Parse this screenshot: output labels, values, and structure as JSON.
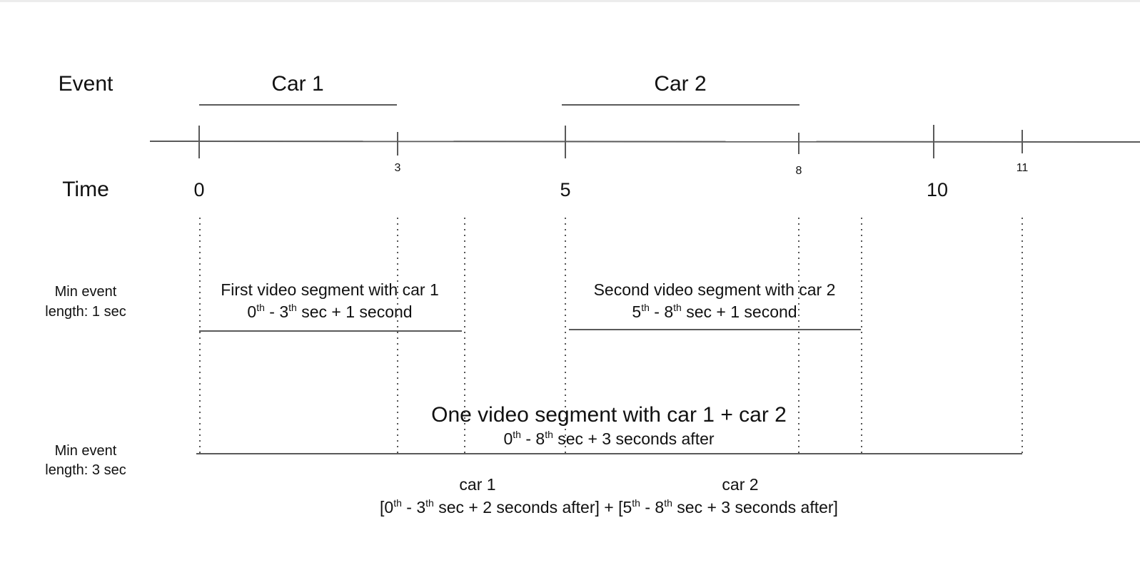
{
  "labels": {
    "event": "Event",
    "time": "Time",
    "min_event_1": [
      "Min event",
      "length: 1 sec"
    ],
    "min_event_3": [
      "Min event",
      "length: 3 sec"
    ]
  },
  "events": [
    {
      "label": "Car 1",
      "start": 0,
      "end": 3
    },
    {
      "label": "Car 2",
      "start": 5,
      "end": 8
    }
  ],
  "time_ticks": [
    "0",
    "3",
    "5",
    "8",
    "10",
    "11"
  ],
  "segment_1": {
    "title": "First video segment with car 1",
    "detail": [
      {
        "t": "0"
      },
      {
        "sup": "th"
      },
      {
        "t": " - 3"
      },
      {
        "sup": "th"
      },
      {
        "t": " sec + 1 second"
      }
    ]
  },
  "segment_2": {
    "title": "Second video segment with car 2",
    "detail": [
      {
        "t": "5"
      },
      {
        "sup": "th"
      },
      {
        "t": " - 8"
      },
      {
        "sup": "th"
      },
      {
        "t": " sec + 1 second"
      }
    ]
  },
  "combined": {
    "title": "One video segment with car 1 + car 2",
    "detail": [
      {
        "t": "0"
      },
      {
        "sup": "th"
      },
      {
        "t": " - 8"
      },
      {
        "sup": "th"
      },
      {
        "t": " sec + 3 seconds after"
      }
    ],
    "car1_label": "car 1",
    "car2_label": "car 2",
    "breakdown": [
      {
        "t": "[0"
      },
      {
        "sup": "th"
      },
      {
        "t": " - 3"
      },
      {
        "sup": "th"
      },
      {
        "t": " sec + 2 seconds after] + [5"
      },
      {
        "sup": "th"
      },
      {
        "t": " - 8"
      },
      {
        "sup": "th"
      },
      {
        "t": " sec + 3 seconds after]"
      }
    ]
  }
}
